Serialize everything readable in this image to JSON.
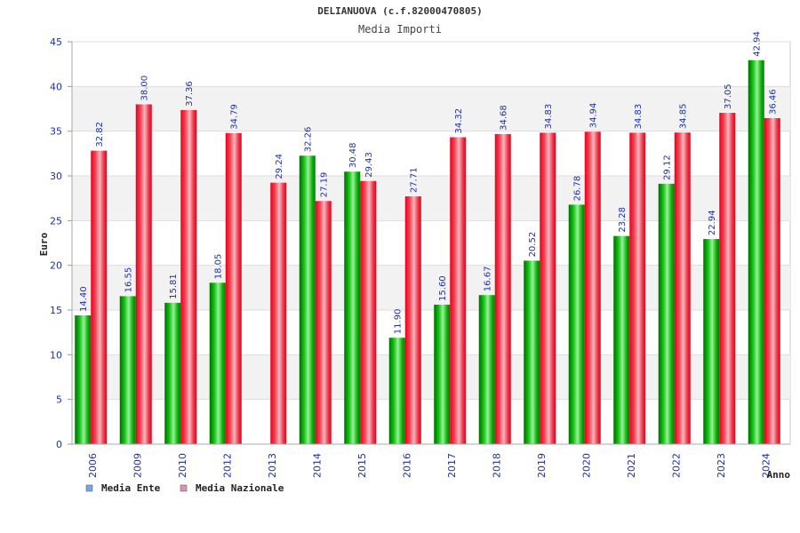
{
  "chart_data": {
    "type": "bar",
    "title": "DELIANUOVA (c.f.82000470805)",
    "subtitle": "Media Importi",
    "xlabel": "Anno",
    "ylabel": "Euro",
    "ylim": [
      0,
      45
    ],
    "yticks": [
      0,
      5,
      10,
      15,
      20,
      25,
      30,
      35,
      40,
      45
    ],
    "grid": true,
    "legend_position": "bottom-left",
    "categories": [
      "2006",
      "2009",
      "2010",
      "2012",
      "2013",
      "2014",
      "2015",
      "2016",
      "2017",
      "2018",
      "2019",
      "2020",
      "2021",
      "2022",
      "2023",
      "2024"
    ],
    "series": [
      {
        "name": "Media Ente",
        "color": "#00a000",
        "legend_color": "#6fa8e8",
        "values": [
          14.4,
          16.55,
          15.81,
          18.05,
          null,
          32.26,
          30.48,
          11.9,
          15.6,
          16.67,
          20.52,
          26.78,
          23.28,
          29.12,
          22.94,
          42.94
        ],
        "labels": [
          "14.40",
          "16.55",
          "15.81",
          "18.05",
          "",
          "32.26",
          "30.48",
          "11.90",
          "15.60",
          "16.67",
          "20.52",
          "26.78",
          "23.28",
          "29.12",
          "22.94",
          "42.94"
        ]
      },
      {
        "name": "Media Nazionale",
        "color": "#e8102a",
        "legend_color": "#e08fb4",
        "values": [
          32.82,
          38.0,
          37.36,
          34.79,
          29.24,
          27.19,
          29.43,
          27.71,
          34.32,
          34.68,
          34.83,
          34.94,
          34.83,
          34.85,
          37.05,
          36.46
        ],
        "labels": [
          "32.82",
          "38.00",
          "37.36",
          "34.79",
          "29.24",
          "27.19",
          "29.43",
          "27.71",
          "34.32",
          "34.68",
          "34.83",
          "34.94",
          "34.83",
          "34.85",
          "37.05",
          "36.46"
        ]
      }
    ]
  }
}
